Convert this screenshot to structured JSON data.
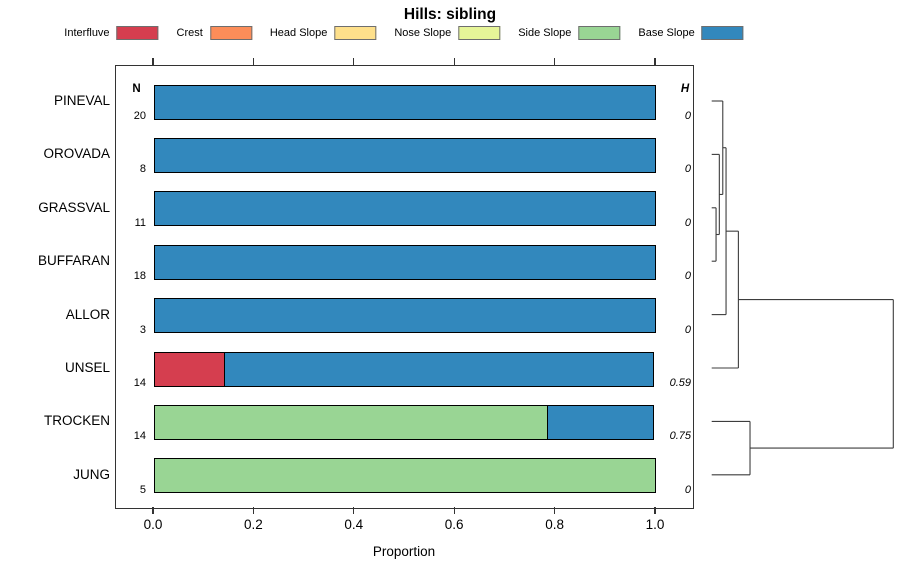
{
  "title": "Hills: sibling",
  "legend": [
    {
      "label": "Interfluve",
      "color": "#D53E4F"
    },
    {
      "label": "Crest",
      "color": "#FC8D59"
    },
    {
      "label": "Head Slope",
      "color": "#FEE08B"
    },
    {
      "label": "Nose Slope",
      "color": "#E6F598"
    },
    {
      "label": "Side Slope",
      "color": "#99D594"
    },
    {
      "label": "Base Slope",
      "color": "#3288BD"
    }
  ],
  "columns": {
    "n": "N",
    "h": "H"
  },
  "axis": {
    "label": "Proportion",
    "ticks": [
      "0.0",
      "0.2",
      "0.4",
      "0.6",
      "0.8",
      "1.0"
    ]
  },
  "chart_data": {
    "type": "bar",
    "orientation": "horizontal",
    "stacked": true,
    "title": "Hills: sibling",
    "xlabel": "Proportion",
    "xlim": [
      0,
      1
    ],
    "classes": [
      "Interfluve",
      "Crest",
      "Head Slope",
      "Nose Slope",
      "Side Slope",
      "Base Slope"
    ],
    "categories": [
      "PINEVAL",
      "OROVADA",
      "GRASSVAL",
      "BUFFARAN",
      "ALLOR",
      "UNSEL",
      "TROCKEN",
      "JUNG"
    ],
    "rows": [
      {
        "name": "PINEVAL",
        "n": 20,
        "shannon_h": "0",
        "segments": [
          {
            "class": "Base Slope",
            "value": 1.0
          }
        ]
      },
      {
        "name": "OROVADA",
        "n": 8,
        "shannon_h": "0",
        "segments": [
          {
            "class": "Base Slope",
            "value": 1.0
          }
        ]
      },
      {
        "name": "GRASSVAL",
        "n": 11,
        "shannon_h": "0",
        "segments": [
          {
            "class": "Base Slope",
            "value": 1.0
          }
        ]
      },
      {
        "name": "BUFFARAN",
        "n": 18,
        "shannon_h": "0",
        "segments": [
          {
            "class": "Base Slope",
            "value": 1.0
          }
        ]
      },
      {
        "name": "ALLOR",
        "n": 3,
        "shannon_h": "0",
        "segments": [
          {
            "class": "Base Slope",
            "value": 1.0
          }
        ]
      },
      {
        "name": "UNSEL",
        "n": 14,
        "shannon_h": "0.59",
        "segments": [
          {
            "class": "Interfluve",
            "value": 0.143
          },
          {
            "class": "Base Slope",
            "value": 0.857
          }
        ]
      },
      {
        "name": "TROCKEN",
        "n": 14,
        "shannon_h": "0.75",
        "segments": [
          {
            "class": "Side Slope",
            "value": 0.786
          },
          {
            "class": "Base Slope",
            "value": 0.214
          }
        ]
      },
      {
        "name": "JUNG",
        "n": 5,
        "shannon_h": "0",
        "segments": [
          {
            "class": "Side Slope",
            "value": 1.0
          }
        ]
      }
    ],
    "dendrogram": {
      "h": 1.0,
      "children": [
        {
          "h": 0.147,
          "children": [
            {
              "h": 0.079,
              "children": [
                {
                  "h": 0.061,
                  "children": [
                    {
                      "leaf": "PINEVAL"
                    },
                    {
                      "h": 0.042,
                      "children": [
                        {
                          "leaf": "OROVADA"
                        },
                        {
                          "h": 0.024,
                          "children": [
                            {
                              "leaf": "GRASSVAL"
                            },
                            {
                              "leaf": "BUFFARAN"
                            }
                          ]
                        }
                      ]
                    }
                  ]
                },
                {
                  "leaf": "ALLOR"
                }
              ]
            },
            {
              "leaf": "UNSEL"
            }
          ]
        },
        {
          "h": 0.211,
          "children": [
            {
              "leaf": "TROCKEN"
            },
            {
              "leaf": "JUNG"
            }
          ]
        }
      ]
    }
  }
}
